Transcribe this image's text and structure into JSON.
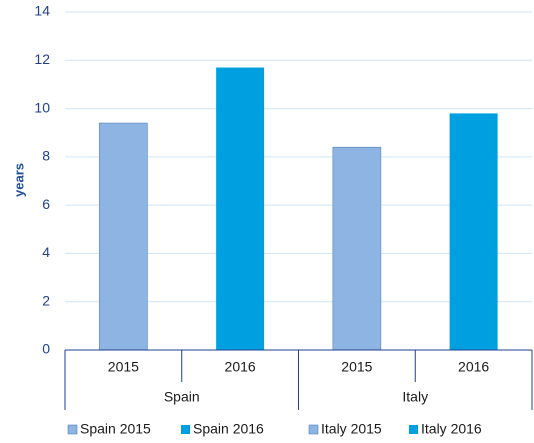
{
  "chart_data": {
    "type": "bar",
    "ylabel": "years",
    "categories": [
      "2015",
      "2016",
      "2015",
      "2016"
    ],
    "groups": [
      "Spain",
      "Italy"
    ],
    "series": [
      {
        "name": "Spain 2015",
        "color": "#8db4e2",
        "values": [
          9.4,
          null,
          null,
          null
        ]
      },
      {
        "name": "Spain 2016",
        "color": "#00a0e0",
        "values": [
          null,
          11.7,
          null,
          null
        ]
      },
      {
        "name": "Italy 2015",
        "color": "#8db4e2",
        "values": [
          null,
          null,
          8.4,
          null
        ]
      },
      {
        "name": "Italy 2016",
        "color": "#00a0e0",
        "values": [
          null,
          null,
          null,
          9.8
        ]
      }
    ],
    "ylim": [
      0,
      14
    ],
    "yticks": [
      0,
      2,
      4,
      6,
      8,
      10,
      12,
      14
    ],
    "grid": true,
    "legend": "bottom"
  }
}
